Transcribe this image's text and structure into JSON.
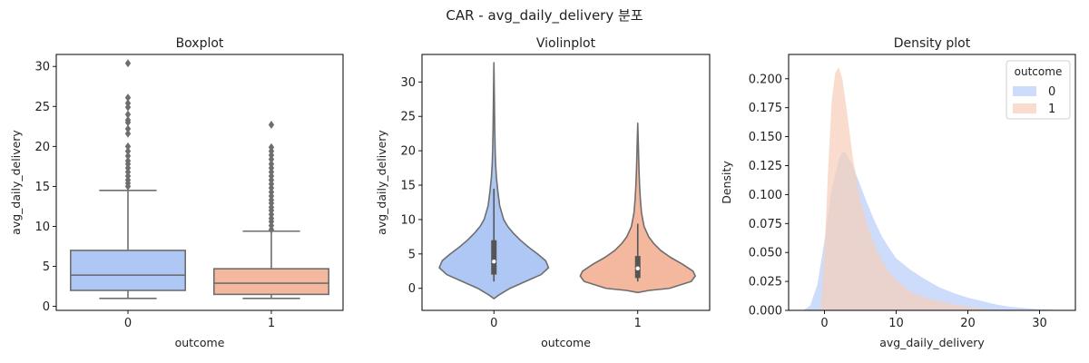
{
  "suptitle": "CAR - avg_daily_delivery 분포",
  "colors": {
    "outcome_0": "#aec7f5",
    "outcome_1": "#f4b89e",
    "box_line": "#6e6e6e",
    "kde_0": "#c4d6fa",
    "kde_1": "#f7cdb9"
  },
  "chart_data": [
    {
      "type": "box",
      "title": "Boxplot",
      "xlabel": "outcome",
      "ylabel": "avg_daily_delivery",
      "categories": [
        "0",
        "1"
      ],
      "ylim": [
        -0.5,
        31.5
      ],
      "yticks": [
        0,
        5,
        10,
        15,
        20,
        25,
        30
      ],
      "boxes": [
        {
          "category": "0",
          "whisker_low": 1.0,
          "q1": 2.0,
          "median": 3.9,
          "q3": 7.0,
          "whisker_high": 14.5,
          "outliers": [
            15.0,
            15.4,
            15.8,
            16.3,
            16.8,
            17.3,
            17.8,
            18.2,
            18.8,
            19.4,
            20.0,
            21.6,
            22.2,
            23.0,
            23.3,
            24.0,
            24.9,
            25.4,
            26.1,
            30.4
          ]
        },
        {
          "category": "1",
          "whisker_low": 1.0,
          "q1": 1.5,
          "median": 2.9,
          "q3": 4.7,
          "whisker_high": 9.4,
          "outliers": [
            9.6,
            10.1,
            10.6,
            11.0,
            11.5,
            12.0,
            12.4,
            12.9,
            13.3,
            13.8,
            14.3,
            14.8,
            15.3,
            15.8,
            16.3,
            16.8,
            17.3,
            17.8,
            18.4,
            18.9,
            19.4,
            19.9,
            22.7
          ]
        }
      ]
    },
    {
      "type": "violin",
      "title": "Violinplot",
      "xlabel": "outcome",
      "ylabel": "avg_daily_delivery",
      "categories": [
        "0",
        "1"
      ],
      "ylim": [
        -3.2,
        34.0
      ],
      "yticks": [
        0,
        5,
        10,
        15,
        20,
        25,
        30
      ],
      "violins": [
        {
          "category": "0",
          "ymin": -1.5,
          "ymax": 32.8,
          "q1": 2.0,
          "median": 3.9,
          "q3": 7.0,
          "whisker_low": 1.0,
          "whisker_high": 14.5,
          "profile": [
            [
              -1.5,
              0.0
            ],
            [
              -1.0,
              0.08
            ],
            [
              0.0,
              0.28
            ],
            [
              1.0,
              0.55
            ],
            [
              2.0,
              0.82
            ],
            [
              3.0,
              0.95
            ],
            [
              4.0,
              0.9
            ],
            [
              5.0,
              0.76
            ],
            [
              6.0,
              0.6
            ],
            [
              7.0,
              0.46
            ],
            [
              8.0,
              0.34
            ],
            [
              9.0,
              0.24
            ],
            [
              10.0,
              0.17
            ],
            [
              12.0,
              0.1
            ],
            [
              14.0,
              0.07
            ],
            [
              16.0,
              0.045
            ],
            [
              18.0,
              0.03
            ],
            [
              20.0,
              0.022
            ],
            [
              23.0,
              0.015
            ],
            [
              26.0,
              0.01
            ],
            [
              29.0,
              0.006
            ],
            [
              32.8,
              0.0
            ]
          ]
        },
        {
          "category": "1",
          "ymin": -0.6,
          "ymax": 24.0,
          "q1": 1.5,
          "median": 2.9,
          "q3": 4.7,
          "whisker_low": 1.0,
          "whisker_high": 9.4,
          "profile": [
            [
              -0.6,
              0.0
            ],
            [
              -0.3,
              0.2
            ],
            [
              0.0,
              0.55
            ],
            [
              1.0,
              0.93
            ],
            [
              1.8,
              1.0
            ],
            [
              2.5,
              0.96
            ],
            [
              3.5,
              0.78
            ],
            [
              4.5,
              0.57
            ],
            [
              5.5,
              0.4
            ],
            [
              6.5,
              0.28
            ],
            [
              7.5,
              0.19
            ],
            [
              9.0,
              0.11
            ],
            [
              11.0,
              0.065
            ],
            [
              13.0,
              0.045
            ],
            [
              15.0,
              0.032
            ],
            [
              17.0,
              0.023
            ],
            [
              19.0,
              0.016
            ],
            [
              21.0,
              0.01
            ],
            [
              24.0,
              0.0
            ]
          ]
        }
      ]
    },
    {
      "type": "area",
      "title": "Density plot",
      "xlabel": "avg_daily_delivery",
      "ylabel": "Density",
      "xlim": [
        -5.0,
        35.0
      ],
      "ylim": [
        0.0,
        0.221
      ],
      "xticks": [
        0,
        10,
        20,
        30
      ],
      "yticks": [
        0.0,
        0.025,
        0.05,
        0.075,
        0.1,
        0.125,
        0.15,
        0.175,
        0.2
      ],
      "legend": {
        "title": "outcome",
        "position": "top-right",
        "entries": [
          "0",
          "1"
        ]
      },
      "series": [
        {
          "name": "0",
          "x": [
            -3.0,
            -2.0,
            -1.0,
            0.0,
            1.0,
            2.0,
            2.5,
            3.0,
            4.0,
            5.0,
            6.0,
            7.0,
            8.0,
            9.0,
            10.0,
            12.0,
            14.0,
            16.0,
            18.0,
            20.0,
            22.0,
            24.0,
            26.0,
            28.0,
            30.0,
            32.0,
            34.0
          ],
          "y": [
            0.0,
            0.004,
            0.022,
            0.06,
            0.105,
            0.13,
            0.137,
            0.136,
            0.124,
            0.108,
            0.092,
            0.077,
            0.064,
            0.054,
            0.045,
            0.035,
            0.027,
            0.02,
            0.015,
            0.011,
            0.008,
            0.005,
            0.003,
            0.002,
            0.001,
            0.0005,
            0.0
          ]
        },
        {
          "name": "1",
          "x": [
            -0.5,
            0.0,
            0.5,
            1.0,
            1.5,
            2.0,
            2.5,
            3.0,
            4.0,
            5.0,
            6.0,
            7.0,
            8.0,
            9.0,
            10.0,
            12.0,
            14.0,
            16.0,
            18.0,
            20.0,
            22.0,
            24.0,
            25.0
          ],
          "y": [
            0.0,
            0.05,
            0.12,
            0.18,
            0.205,
            0.21,
            0.2,
            0.178,
            0.13,
            0.096,
            0.073,
            0.056,
            0.043,
            0.033,
            0.026,
            0.016,
            0.011,
            0.008,
            0.005,
            0.003,
            0.0015,
            0.0005,
            0.0
          ]
        }
      ]
    }
  ]
}
